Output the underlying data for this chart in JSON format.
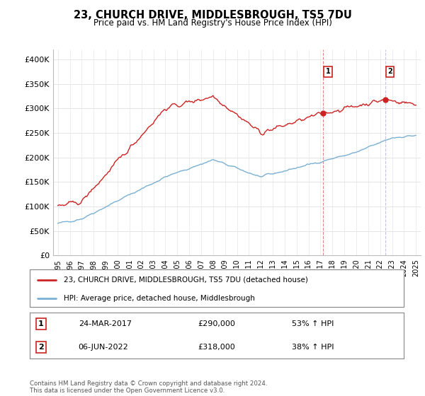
{
  "title": "23, CHURCH DRIVE, MIDDLESBROUGH, TS5 7DU",
  "subtitle": "Price paid vs. HM Land Registry's House Price Index (HPI)",
  "ylim": [
    0,
    420000
  ],
  "yticks": [
    0,
    50000,
    100000,
    150000,
    200000,
    250000,
    300000,
    350000,
    400000
  ],
  "ytick_labels": [
    "£0",
    "£50K",
    "£100K",
    "£150K",
    "£200K",
    "£250K",
    "£300K",
    "£350K",
    "£400K"
  ],
  "hpi_color": "#7ab0d4",
  "price_color": "#cc2222",
  "bg_color": "#ffffff",
  "grid_color": "#e0e0e0",
  "sale1_date": "24-MAR-2017",
  "sale1_price": "£290,000",
  "sale1_pct": "53% ↑ HPI",
  "sale2_date": "06-JUN-2022",
  "sale2_price": "£318,000",
  "sale2_pct": "38% ↑ HPI",
  "legend_label1": "23, CHURCH DRIVE, MIDDLESBROUGH, TS5 7DU (detached house)",
  "legend_label2": "HPI: Average price, detached house, Middlesbrough",
  "footnote": "Contains HM Land Registry data © Crown copyright and database right 2024.\nThis data is licensed under the Open Government Licence v3.0.",
  "sale1_year": 2017.23,
  "sale2_year": 2022.43,
  "sale1_val": 290000,
  "sale2_val": 318000,
  "vline1_color": "#dd6666",
  "vline2_color": "#aaaacc"
}
